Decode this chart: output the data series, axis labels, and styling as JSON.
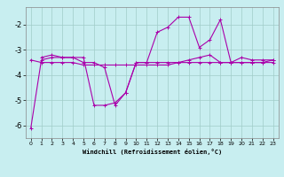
{
  "xlabel": "Windchill (Refroidissement éolien,°C)",
  "background_color": "#c8eef0",
  "line_color": "#aa00aa",
  "grid_color": "#a0ccc8",
  "ylim": [
    -6.5,
    -1.3
  ],
  "xlim": [
    -0.5,
    23.5
  ],
  "yticks": [
    -6,
    -5,
    -4,
    -3,
    -2
  ],
  "xticks": [
    0,
    1,
    2,
    3,
    4,
    5,
    6,
    7,
    8,
    9,
    10,
    11,
    12,
    13,
    14,
    15,
    16,
    17,
    18,
    19,
    20,
    21,
    22,
    23
  ],
  "line1": [
    null,
    -3.3,
    -3.2,
    -3.3,
    -3.3,
    -3.3,
    -5.2,
    -5.2,
    -5.1,
    -4.7,
    -3.5,
    -3.5,
    -3.5,
    -3.5,
    -3.5,
    -3.5,
    -3.5,
    -3.5,
    -3.5,
    -3.5,
    -3.5,
    -3.5,
    -3.5,
    -3.5
  ],
  "line2": [
    -6.1,
    -3.4,
    -3.3,
    -3.3,
    -3.3,
    -3.5,
    -3.5,
    -3.7,
    -5.2,
    -4.7,
    -3.5,
    -3.5,
    -2.3,
    -2.1,
    -1.7,
    -1.7,
    -2.9,
    -2.6,
    -1.8,
    -3.5,
    -3.3,
    -3.4,
    -3.4,
    -3.4
  ],
  "line3": [
    -3.4,
    -3.5,
    -3.5,
    -3.5,
    -3.5,
    -3.6,
    -3.6,
    -3.6,
    -3.6,
    -3.6,
    -3.6,
    -3.6,
    -3.6,
    -3.6,
    -3.5,
    -3.4,
    -3.3,
    -3.2,
    -3.5,
    -3.5,
    -3.5,
    -3.5,
    -3.5,
    -3.4
  ]
}
